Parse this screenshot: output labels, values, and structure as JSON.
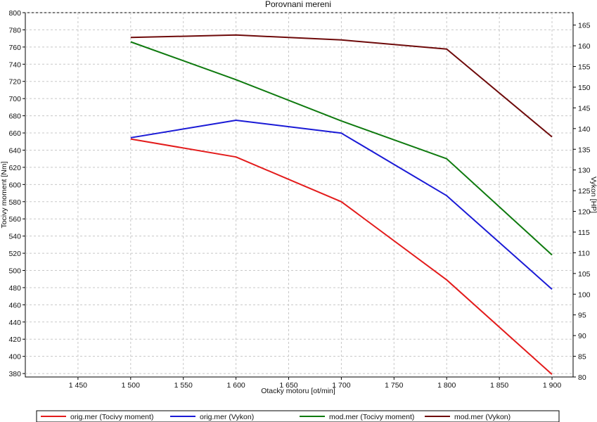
{
  "chart_data": {
    "type": "line",
    "title": "Porovnani mereni",
    "xlabel": "Otacky motoru [ot/min]",
    "ylabel_left": "Tocivy moment [Nm]",
    "ylabel_right": "Vykon [HP]",
    "x": [
      1500,
      1600,
      1700,
      1800,
      1900
    ],
    "xlim": [
      1400,
      1920
    ],
    "xticks": [
      1450,
      1500,
      1550,
      1600,
      1650,
      1700,
      1750,
      1800,
      1850,
      1900
    ],
    "xtick_labels": [
      "1 450",
      "1 500",
      "1 550",
      "1 600",
      "1 650",
      "1 700",
      "1 750",
      "1 800",
      "1 850",
      "1 900"
    ],
    "ylim_left": [
      376,
      800
    ],
    "yticks_left": [
      380,
      400,
      420,
      440,
      460,
      480,
      500,
      520,
      540,
      560,
      580,
      600,
      620,
      640,
      660,
      680,
      700,
      720,
      740,
      760,
      780,
      800
    ],
    "ylim_right": [
      80,
      168
    ],
    "yticks_right": [
      80,
      85,
      90,
      95,
      100,
      105,
      110,
      115,
      120,
      125,
      130,
      135,
      140,
      145,
      150,
      155,
      160,
      165
    ],
    "grid": true,
    "legend_position": "bottom",
    "series": [
      {
        "name": "orig.mer  (Tocivy moment)",
        "axis": "left",
        "color": "#e31b1b",
        "values": [
          653,
          632,
          580,
          489,
          379
        ]
      },
      {
        "name": "orig.mer  (Vykon)",
        "axis": "right",
        "color": "#1a1ad6",
        "values": [
          137.8,
          142.0,
          138.9,
          123.8,
          101.2
        ]
      },
      {
        "name": "mod.mer  (Tocivy moment)",
        "axis": "left",
        "color": "#0f7a0f",
        "values": [
          766,
          722,
          674,
          630,
          518
        ]
      },
      {
        "name": "mod.mer  (Vykon)",
        "axis": "right",
        "color": "#6e0a0a",
        "values": [
          162.0,
          162.6,
          161.4,
          159.2,
          138.0
        ]
      }
    ]
  }
}
